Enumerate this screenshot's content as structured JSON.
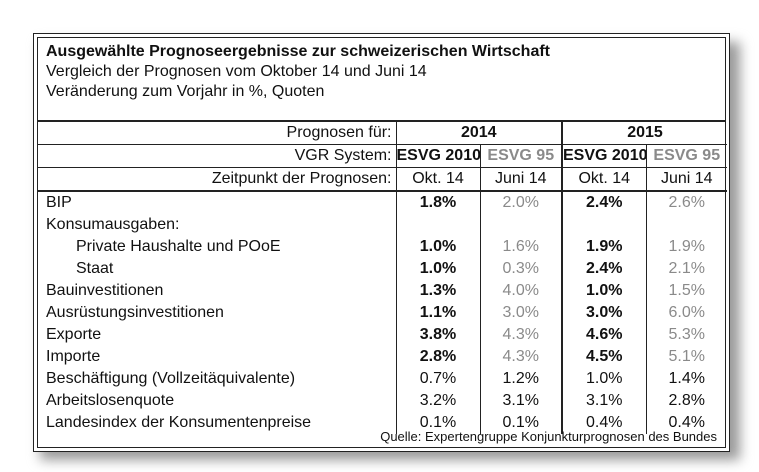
{
  "header": {
    "title": "Ausgewählte Prognoseergebnisse zur schweizerischen Wirtschaft",
    "line1": "Vergleich der Prognosen vom Oktober 14 und Juni 14",
    "line2": "Veränderung zum Vorjahr in %, Quoten"
  },
  "head_labels": {
    "prognosen": "Prognosen für:",
    "vgr": "VGR System:",
    "zeitpunkt": "Zeitpunkt der Prognosen:"
  },
  "years": [
    "2014",
    "2015"
  ],
  "systems": [
    "ESVG 2010",
    "ESVG 95",
    "ESVG 2010",
    "ESVG 95"
  ],
  "dates": [
    "Okt. 14",
    "Juni 14",
    "Okt. 14",
    "Juni 14"
  ],
  "rows": [
    {
      "label": "BIP",
      "values": [
        "1.8%",
        "2.0%",
        "2.4%",
        "2.6%"
      ]
    },
    {
      "label": "Konsumausgaben:",
      "values": [
        "",
        "",
        "",
        ""
      ]
    },
    {
      "label": "Private Haushalte und POoE",
      "values": [
        "1.0%",
        "1.6%",
        "1.9%",
        "1.9%"
      ]
    },
    {
      "label": "Staat",
      "values": [
        "1.0%",
        "0.3%",
        "2.4%",
        "2.1%"
      ]
    },
    {
      "label": "Bauinvestitionen",
      "values": [
        "1.3%",
        "4.0%",
        "1.0%",
        "1.5%"
      ]
    },
    {
      "label": "Ausrüstungsinvestitionen",
      "values": [
        "1.1%",
        "3.0%",
        "3.0%",
        "6.0%"
      ]
    },
    {
      "label": "Exporte",
      "values": [
        "3.8%",
        "4.3%",
        "4.6%",
        "5.3%"
      ]
    },
    {
      "label": "Importe",
      "values": [
        "2.8%",
        "4.3%",
        "4.5%",
        "5.1%"
      ]
    },
    {
      "label": "Beschäftigung (Vollzeitäquivalente)",
      "values": [
        "0.7%",
        "1.2%",
        "1.0%",
        "1.4%"
      ]
    },
    {
      "label": "Arbeitslosenquote",
      "values": [
        "3.2%",
        "3.1%",
        "3.1%",
        "2.8%"
      ]
    },
    {
      "label": "Landesindex der Konsumentenpreise",
      "values": [
        "0.1%",
        "0.1%",
        "0.4%",
        "0.4%"
      ]
    }
  ],
  "source": "Quelle: Expertengruppe Konjunkturprognosen des Bundes"
}
